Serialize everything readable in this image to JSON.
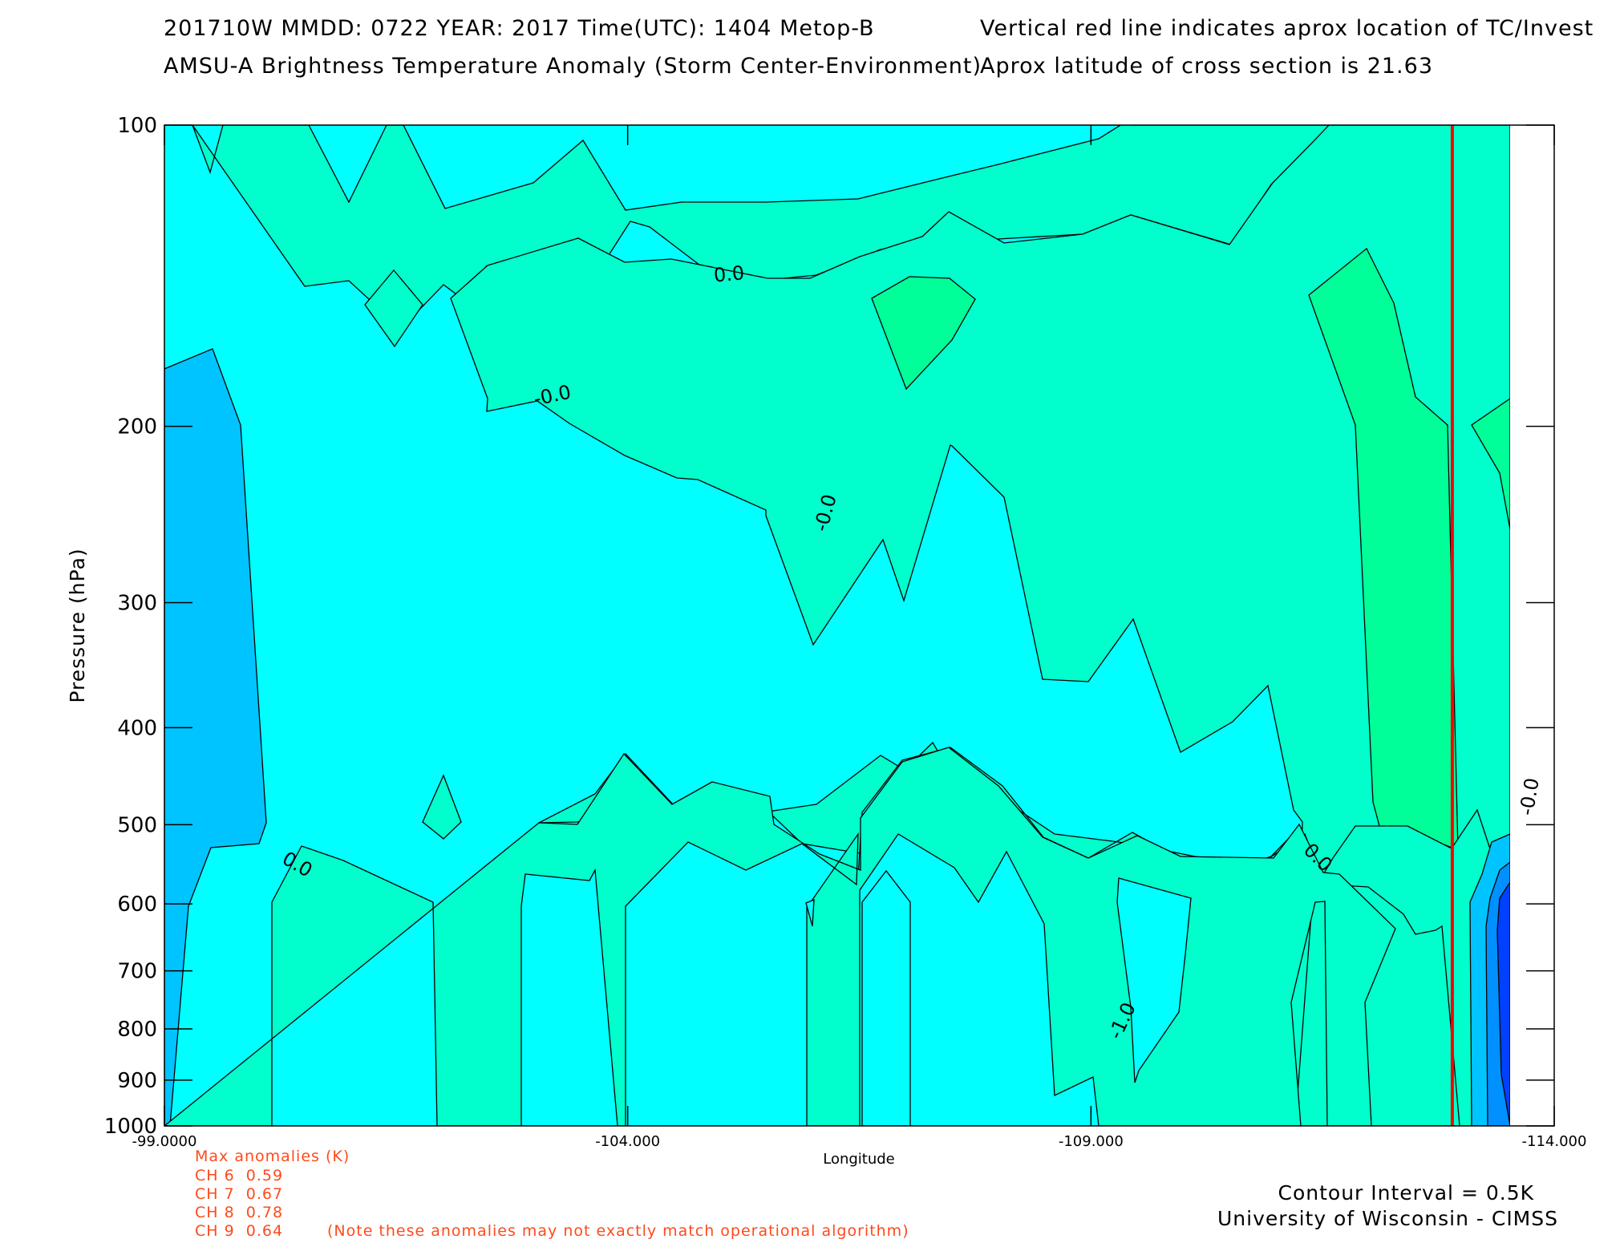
{
  "header": {
    "line1_left": "201710W  MMDD: 0722 YEAR: 2017 Time(UTC): 1404 Metop-B",
    "line2_left": "AMSU-A Brightness Temperature Anomaly (Storm Center-Environment)",
    "line1_right": "Vertical red line indicates aprox location of TC/Invest",
    "line2_right": "Aprox latitude of cross section is 21.63"
  },
  "chart_data": {
    "type": "contour",
    "title": "AMSU-A Brightness Temperature Anomaly (Storm Center-Environment)",
    "xlabel": "Longitude",
    "ylabel": "Pressure (hPa)",
    "xlim": [
      -99.0,
      -114.0
    ],
    "ylim": [
      1000,
      100
    ],
    "y_scale": "log",
    "x_ticks": [
      "-99.0000",
      "-104.000",
      "-109.000",
      "-114.000"
    ],
    "x_tick_values": [
      -99,
      -104,
      -109,
      -114
    ],
    "y_ticks": [
      "100",
      "200",
      "300",
      "400",
      "500",
      "600",
      "700",
      "800",
      "900",
      "1000"
    ],
    "y_tick_values": [
      100,
      200,
      300,
      400,
      500,
      600,
      700,
      800,
      900,
      1000
    ],
    "contour_interval_K": 0.5,
    "tc_longitude": -112.9,
    "contour_labels": [
      {
        "text": "0.0",
        "lon": -105.1,
        "p": 143
      },
      {
        "text": "-0.0",
        "lon": -103.2,
        "p": 189
      },
      {
        "text": "-0.0",
        "lon": -106.2,
        "p": 245
      },
      {
        "text": "0.0",
        "lon": -100.4,
        "p": 555
      },
      {
        "text": "0.0",
        "lon": -111.4,
        "p": 545
      },
      {
        "text": "-0.0",
        "lon": -113.8,
        "p": 470
      },
      {
        "text": "-1.0",
        "lon": -109.4,
        "p": 790
      }
    ],
    "fill_colors": {
      "minus_1_5": "#0040ff",
      "minus_1_0": "#0090ff",
      "minus_0_5": "#00c4ff",
      "zero": "#00ffff",
      "plus_0_0": "#00ffcc",
      "plus_0_5": "#00ff99",
      "tc_line": "#ff0000"
    }
  },
  "anomalies": {
    "title": "Max anomalies (K)",
    "rows": [
      "CH 6  0.59",
      "CH 7  0.67",
      "CH 8  0.78",
      "CH 9  0.64"
    ],
    "note": "(Note these anomalies may not exactly match operational algorithm)",
    "color": "#ff4a1c"
  },
  "footer": {
    "contour_interval": "Contour Interval = 0.5K",
    "credit": "University of Wisconsin - CIMSS"
  }
}
